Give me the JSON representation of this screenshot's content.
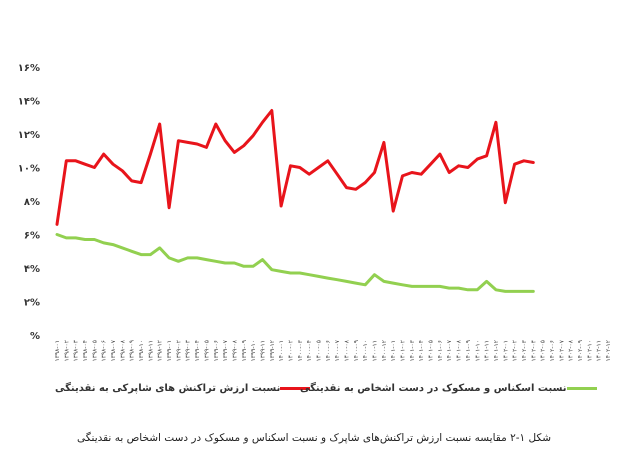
{
  "chart_data": {
    "type": "line",
    "y_tick_labels": [
      "%",
      "۲%",
      "۴%",
      "۶%",
      "۸%",
      "۱۰%",
      "۱۲%",
      "۱۴%",
      "۱۶%"
    ],
    "y_tick_values": [
      0,
      2,
      4,
      6,
      8,
      10,
      12,
      14,
      16
    ],
    "ylim": [
      0,
      16
    ],
    "grid": false,
    "legend_position": "bottom",
    "x_tick_labels": [
      "۱۳۹۸-۰۱",
      "۱۳۹۸-۰۲",
      "۱۳۹۸-۰۳",
      "۱۳۹۸-۰۴",
      "۱۳۹۸-۰۵",
      "۱۳۹۸-۰۶",
      "۱۳۹۸-۰۷",
      "۱۳۹۸-۰۸",
      "۱۳۹۸-۰۹",
      "۱۳۹۸-۱۰",
      "۱۳۹۸-۱۱",
      "۱۳۹۸-۱۲",
      "۱۳۹۹-۰۱",
      "۱۳۹۹-۰۲",
      "۱۳۹۹-۰۳",
      "۱۳۹۹-۰۴",
      "۱۳۹۹-۰۵",
      "۱۳۹۹-۰۶",
      "۱۳۹۹-۰۷",
      "۱۳۹۹-۰۸",
      "۱۳۹۹-۰۹",
      "۱۳۹۹-۱۰",
      "۱۳۹۹-۱۱",
      "۱۳۹۹-۱۲",
      "۱۴۰۰-۰۱",
      "۱۴۰۰-۰۲",
      "۱۴۰۰-۰۳",
      "۱۴۰۰-۰۴",
      "۱۴۰۰-۰۵",
      "۱۴۰۰-۰۶",
      "۱۴۰۰-۰۷",
      "۱۴۰۰-۰۸",
      "۱۴۰۰-۰۹",
      "۱۴۰۰-۱۰",
      "۱۴۰۰-۱۱",
      "۱۴۰۰-۱۲",
      "۱۴۰۱-۰۱",
      "۱۴۰۱-۰۲",
      "۱۴۰۱-۰۳",
      "۱۴۰۱-۰۴",
      "۱۴۰۱-۰۵",
      "۱۴۰۱-۰۶",
      "۱۴۰۱-۰۷",
      "۱۴۰۱-۰۸",
      "۱۴۰۱-۰۹",
      "۱۴۰۱-۱۰",
      "۱۴۰۱-۱۱",
      "۱۴۰۱-۱۲",
      "۱۴۰۲-۰۱",
      "۱۴۰۲-۰۲",
      "۱۴۰۲-۰۳",
      "۱۴۰۲-۰۴",
      "۱۴۰۲-۰۵",
      "۱۴۰۲-۰۶",
      "۱۴۰۲-۰۷",
      "۱۴۰۲-۰۸",
      "۱۴۰۲-۰۹",
      "۱۴۰۲-۱۰",
      "۱۴۰۲-۱۱",
      "۱۴۰۲-۱۲"
    ],
    "series": [
      {
        "name": "نسبت ارزش تراکنش های شاپرکی به نقدینگی",
        "color": "#e8141b",
        "values": [
          6.6,
          10.4,
          10.4,
          10.2,
          10.0,
          10.8,
          10.2,
          9.8,
          9.2,
          9.1,
          10.8,
          12.6,
          7.6,
          11.6,
          11.5,
          11.4,
          11.2,
          12.6,
          11.6,
          10.9,
          11.3,
          11.9,
          12.7,
          13.4,
          7.7,
          10.1,
          10.0,
          9.6,
          10.0,
          10.4,
          9.6,
          8.8,
          8.7,
          9.1,
          9.7,
          11.5,
          7.4,
          9.5,
          9.7,
          9.6,
          10.2,
          10.8,
          9.7,
          10.1,
          10.0,
          10.5,
          10.7,
          12.7,
          7.9,
          10.2,
          10.4,
          10.3
        ]
      },
      {
        "name": "نسبت اسکناس و مسکوک در دست اشخاص به نقدینگی",
        "color": "#92d050",
        "values": [
          6.0,
          5.8,
          5.8,
          5.7,
          5.7,
          5.5,
          5.4,
          5.2,
          5.0,
          4.8,
          4.8,
          5.2,
          4.6,
          4.4,
          4.6,
          4.6,
          4.5,
          4.4,
          4.3,
          4.3,
          4.1,
          4.1,
          4.5,
          3.9,
          3.8,
          3.7,
          3.7,
          3.6,
          3.5,
          3.4,
          3.3,
          3.2,
          3.1,
          3.0,
          3.6,
          3.2,
          3.1,
          3.0,
          2.9,
          2.9,
          2.9,
          2.9,
          2.8,
          2.8,
          2.7,
          2.7,
          3.2,
          2.7,
          2.6,
          2.6,
          2.6,
          2.6
        ]
      }
    ]
  },
  "legend": {
    "red_label": "نسبت ارزش تراکنش های شاپرکی به نقدینگی",
    "green_label": "نسبت اسکناس و مسکوک در دست اشخاص به نقدینگی"
  },
  "caption": "شکل ۱-۲  مقایسه نسبت ارزش تراکنش‌های شاپرک و نسبت اسکناس و مسکوک در دست اشخاص به نقدینگی"
}
